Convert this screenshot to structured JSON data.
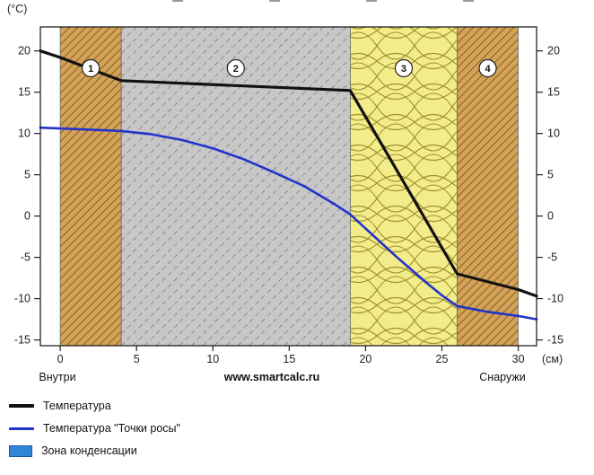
{
  "chart_data": {
    "type": "line",
    "title": "",
    "y_axis_label": "(°C)",
    "x_axis_label": "(см)",
    "x_ticks": [
      0,
      5,
      10,
      15,
      20,
      25,
      30
    ],
    "y_ticks": [
      20,
      15,
      10,
      5,
      0,
      -5,
      -10,
      -15
    ],
    "xlim": [
      -1.3,
      31.2
    ],
    "ylim": [
      -15.7,
      22.9
    ],
    "grid": false,
    "legend_position": "bottom-left",
    "layers": [
      {
        "number": "1",
        "from": 0,
        "to": 4,
        "material": "brick"
      },
      {
        "number": "2",
        "from": 4,
        "to": 19,
        "material": "concrete"
      },
      {
        "number": "3",
        "from": 19,
        "to": 26,
        "material": "insulation"
      },
      {
        "number": "4",
        "from": 26,
        "to": 30,
        "material": "brick"
      }
    ],
    "series": [
      {
        "name": "Температура",
        "color": "#111111",
        "width": 3.2,
        "points": [
          [
            -1.3,
            20.0
          ],
          [
            0,
            19.2
          ],
          [
            4,
            16.4
          ],
          [
            19,
            15.2
          ],
          [
            26,
            -7.0
          ],
          [
            30,
            -8.9
          ],
          [
            31.2,
            -9.7
          ]
        ]
      },
      {
        "name": "Температура \"Точки росы\"",
        "color": "#2233cc",
        "width": 2.6,
        "points": [
          [
            -1.3,
            10.7
          ],
          [
            0,
            10.6
          ],
          [
            4,
            10.3
          ],
          [
            6,
            9.9
          ],
          [
            8,
            9.2
          ],
          [
            10,
            8.2
          ],
          [
            12,
            6.9
          ],
          [
            14,
            5.3
          ],
          [
            16,
            3.6
          ],
          [
            18,
            1.4
          ],
          [
            19,
            0.2
          ],
          [
            20,
            -1.5
          ],
          [
            21,
            -3.2
          ],
          [
            22,
            -4.9
          ],
          [
            23,
            -6.5
          ],
          [
            24,
            -8.1
          ],
          [
            25,
            -9.6
          ],
          [
            26,
            -10.9
          ],
          [
            28,
            -11.6
          ],
          [
            30,
            -12.1
          ],
          [
            31.2,
            -12.5
          ]
        ]
      }
    ],
    "annotations": {
      "inside": "Внутри",
      "outside": "Снаружи",
      "watermark": "www.smartcalc.ru"
    }
  },
  "legend": {
    "items": [
      {
        "swatch": "line",
        "color": "#111111",
        "thickness": 4,
        "label": "Температура"
      },
      {
        "swatch": "line",
        "color": "#2233cc",
        "thickness": 3,
        "label": "Температура \"Точки росы\""
      },
      {
        "swatch": "rect",
        "color": "#2e86d8",
        "border": "#1a55a8",
        "label": "Зона конденсации"
      }
    ]
  },
  "colors": {
    "brick_bg": "#d4a258",
    "brick_hatch": "#8a6426",
    "concrete_bg": "#c7c7c7",
    "concrete_hatch": "#8d8d8d",
    "insulation_bg": "#f3ec8a",
    "insulation_hatch": "#a0922c",
    "axis": "#222222"
  }
}
